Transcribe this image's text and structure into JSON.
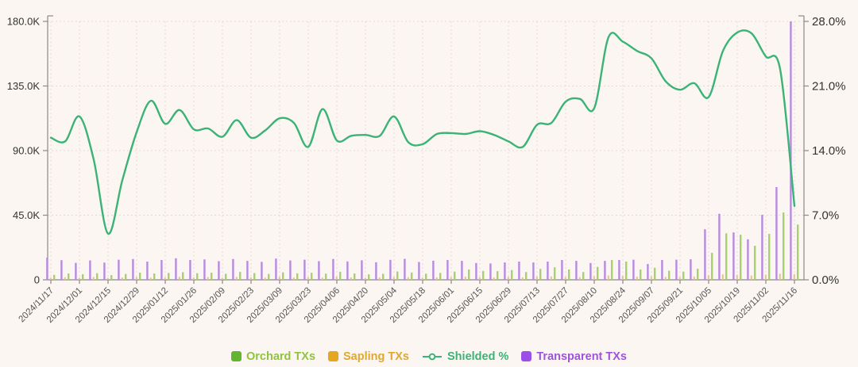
{
  "chart_data": {
    "type": "combo-bar-line",
    "title": "",
    "legend": [
      "Orchard TXs",
      "Sapling TXs",
      "Shielded %",
      "Transparent TXs"
    ],
    "colors": {
      "background": "#fbf6f1",
      "grid": "#e8d8d2",
      "axis": "#8a8a8a",
      "y_label": "#333333",
      "x_label": "#555555",
      "orchard_marker": "#63b42e",
      "orchard_text": "#8fc43c",
      "orchard_bar": "#a9d06f",
      "sapling_marker": "#e5a71f",
      "sapling_text": "#e0a82e",
      "sapling_bar": "#e7c57c",
      "shielded_line": "#3bb377",
      "transparent_marker": "#9b4fe8",
      "transparent_text": "#9f52e0",
      "transparent_bar": "#b88ae2"
    },
    "left_axis": {
      "ticks": [
        "0",
        "45.0K",
        "90.0K",
        "135.0K",
        "180.0K"
      ],
      "min": 0,
      "max_k": 180,
      "unit": "K"
    },
    "right_axis": {
      "ticks": [
        "0.0%",
        "7.0%",
        "14.0%",
        "21.0%",
        "28.0%"
      ],
      "min": 0,
      "max_pct": 28,
      "unit": "%"
    },
    "x_labels": [
      "2024/11/17",
      "2024/12/01",
      "2024/12/15",
      "2024/12/29",
      "2025/01/12",
      "2025/01/26",
      "2025/02/09",
      "2025/02/23",
      "2025/03/09",
      "2025/03/23",
      "2025/04/06",
      "2025/04/20",
      "2025/05/04",
      "2025/05/18",
      "2025/06/01",
      "2025/06/15",
      "2025/06/29",
      "2025/07/13",
      "2025/07/27",
      "2025/08/10",
      "2025/08/24",
      "2025/09/07",
      "2025/09/21",
      "2025/10/05",
      "2025/10/19",
      "2025/11/02",
      "2025/11/16"
    ],
    "x_label_every": 2,
    "categories": [
      "2024/11/17",
      "2024/11/24",
      "2024/12/01",
      "2024/12/08",
      "2024/12/15",
      "2024/12/22",
      "2024/12/29",
      "2025/01/05",
      "2025/01/12",
      "2025/01/19",
      "2025/01/26",
      "2025/02/02",
      "2025/02/09",
      "2025/02/16",
      "2025/02/23",
      "2025/03/02",
      "2025/03/09",
      "2025/03/16",
      "2025/03/23",
      "2025/03/30",
      "2025/04/06",
      "2025/04/13",
      "2025/04/20",
      "2025/04/27",
      "2025/05/04",
      "2025/05/11",
      "2025/05/18",
      "2025/05/25",
      "2025/06/01",
      "2025/06/08",
      "2025/06/15",
      "2025/06/22",
      "2025/06/29",
      "2025/07/06",
      "2025/07/13",
      "2025/07/20",
      "2025/07/27",
      "2025/08/03",
      "2025/08/10",
      "2025/08/17",
      "2025/08/24",
      "2025/08/31",
      "2025/09/07",
      "2025/09/14",
      "2025/09/21",
      "2025/09/28",
      "2025/10/05",
      "2025/10/12",
      "2025/10/19",
      "2025/10/26",
      "2025/11/02",
      "2025/11/09",
      "2025/11/16"
    ],
    "bar_series": [
      {
        "name": "Transparent TXs",
        "axis": "left",
        "unit": "K",
        "values": [
          15.5,
          13.7,
          11.8,
          13.5,
          12.0,
          14.0,
          14.5,
          12.7,
          13.8,
          15.0,
          13.8,
          14.2,
          13.0,
          14.5,
          13.2,
          12.5,
          14.8,
          13.5,
          14.0,
          13.0,
          14.5,
          12.8,
          13.6,
          12.2,
          13.9,
          14.6,
          12.4,
          13.3,
          13.8,
          13.2,
          11.7,
          11.4,
          12.1,
          12.7,
          12.1,
          12.7,
          13.8,
          13.2,
          11.7,
          13.2,
          13.8,
          14.0,
          11.0,
          13.8,
          14.0,
          14.3,
          35.2,
          46.0,
          33.0,
          28.2,
          45.3,
          64.6,
          180.0
        ]
      },
      {
        "name": "Sapling TXs",
        "axis": "left",
        "unit": "K",
        "values": [
          1.5,
          1.8,
          1.4,
          1.9,
          1.3,
          1.6,
          2.0,
          1.5,
          1.8,
          2.1,
          1.6,
          1.9,
          1.4,
          2.0,
          1.7,
          1.5,
          2.1,
          1.6,
          1.9,
          1.5,
          2.2,
          1.7,
          1.4,
          1.6,
          2.0,
          1.8,
          1.5,
          1.7,
          2.0,
          2.2,
          1.8,
          1.6,
          2.1,
          1.7,
          2.3,
          2.4,
          2.0,
          1.8,
          2.5,
          3.0,
          2.8,
          2.2,
          2.4,
          2.0,
          1.9,
          2.3,
          3.2,
          3.8,
          3.5,
          3.0,
          3.6,
          4.2,
          3.9
        ]
      },
      {
        "name": "Orchard TXs",
        "axis": "left",
        "unit": "K",
        "values": [
          3.4,
          4.4,
          3.9,
          4.6,
          3.3,
          4.1,
          5.0,
          4.4,
          4.8,
          5.3,
          4.6,
          5.0,
          4.2,
          5.5,
          4.7,
          4.1,
          5.2,
          4.5,
          4.9,
          4.3,
          5.6,
          4.4,
          3.8,
          4.2,
          5.8,
          5.1,
          4.3,
          4.8,
          5.7,
          7.2,
          6.2,
          6.0,
          6.8,
          5.4,
          7.6,
          8.7,
          7.2,
          5.4,
          9.0,
          13.8,
          12.7,
          7.2,
          8.4,
          6.3,
          5.7,
          7.7,
          18.8,
          32.4,
          31.4,
          23.7,
          32.0,
          46.9,
          38.5
        ]
      }
    ],
    "line_series": {
      "name": "Shielded %",
      "axis": "right",
      "unit": "%",
      "values": [
        15.4,
        15.0,
        17.7,
        13.0,
        5.0,
        10.8,
        16.0,
        19.4,
        16.9,
        18.4,
        16.3,
        16.4,
        15.5,
        17.3,
        15.4,
        16.2,
        17.5,
        17.0,
        14.4,
        18.5,
        15.1,
        15.6,
        15.7,
        15.6,
        17.7,
        14.9,
        14.7,
        15.8,
        15.9,
        15.8,
        16.1,
        15.7,
        15.0,
        14.4,
        16.8,
        17.0,
        19.3,
        19.6,
        18.6,
        26.3,
        25.8,
        24.8,
        24.0,
        21.5,
        20.6,
        21.3,
        19.8,
        24.8,
        26.8,
        26.7,
        24.2,
        22.8,
        8.0
      ]
    },
    "grid": {
      "horizontal": true,
      "vertical": true,
      "style": "dotted"
    },
    "legend_position": "bottom-center"
  }
}
